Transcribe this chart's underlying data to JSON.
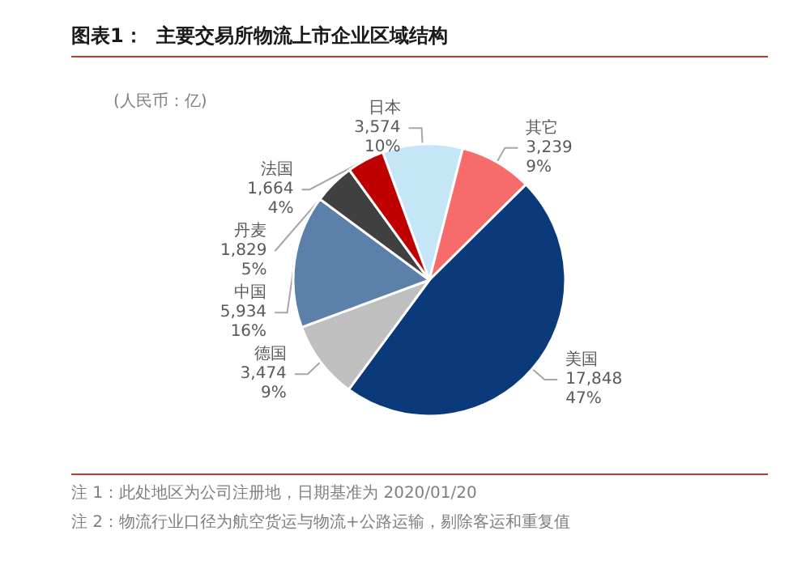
{
  "chart_data": {
    "type": "pie",
    "title": "图表1：  主要交易所物流上市企业区域结构",
    "categories": [
      "日本",
      "其它",
      "美国",
      "德国",
      "中国",
      "丹麦",
      "法国"
    ],
    "values": [
      3574,
      3239,
      17848,
      3474,
      5934,
      1829,
      1664
    ],
    "colors": [
      "#c5e6f7",
      "#f76b6b",
      "#0b3a7a",
      "#bfbfbf",
      "#5b80aa",
      "#404040",
      "#c00000"
    ],
    "value_labels": [
      "3,574\n10%",
      "3,239\n9%",
      "17,848\n47%",
      "3,474\n9%",
      "5,934\n16%",
      "1,829\n5%",
      "1,664\n4%"
    ],
    "annotations": [
      "(人民币：亿)",
      "注 1：此处地区为公司注册地，日期基准为 2020/01/20",
      "注 2：物流行业口径为航空货运与物流+公路运输，剔除客运和重复值"
    ],
    "legend": false
  }
}
